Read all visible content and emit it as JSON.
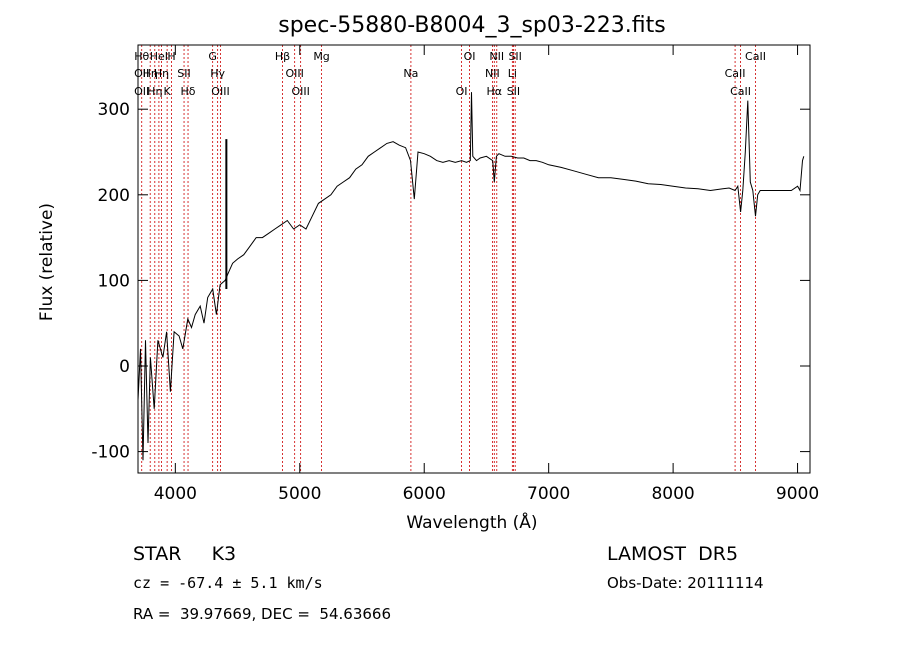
{
  "chart_data": {
    "type": "line",
    "title": "spec-55880-B8004_3_sp03-223.fits",
    "xlabel": "Wavelength (Å)",
    "ylabel": "Flux (relative)",
    "xlim": [
      3700,
      9100
    ],
    "ylim": [
      -125,
      375
    ],
    "xticks": [
      4000,
      5000,
      6000,
      7000,
      8000,
      9000
    ],
    "yticks": [
      -100,
      0,
      100,
      200,
      300
    ],
    "grid": false,
    "line_color": "#000000",
    "marker_color": "#cc0000",
    "series": [
      {
        "x": [
          3700,
          3720,
          3740,
          3760,
          3780,
          3800,
          3830,
          3860,
          3900,
          3930,
          3960,
          3990,
          4030,
          4060,
          4100,
          4130,
          4160,
          4200,
          4230,
          4260,
          4300,
          4330,
          4360,
          4400,
          4430,
          4460,
          4500,
          4550,
          4600,
          4650,
          4700,
          4750,
          4800,
          4850,
          4900,
          4950,
          5000,
          5050,
          5100,
          5150,
          5200,
          5250,
          5300,
          5350,
          5400,
          5450,
          5500,
          5550,
          5600,
          5650,
          5700,
          5750,
          5800,
          5850,
          5890,
          5920,
          5950,
          6000,
          6050,
          6100,
          6150,
          6200,
          6250,
          6300,
          6340,
          6370,
          6380,
          6390,
          6420,
          6450,
          6500,
          6550,
          6563,
          6580,
          6600,
          6650,
          6700,
          6750,
          6800,
          6850,
          6900,
          6950,
          7000,
          7100,
          7200,
          7300,
          7400,
          7500,
          7600,
          7700,
          7800,
          7900,
          8000,
          8100,
          8200,
          8300,
          8400,
          8450,
          8498,
          8520,
          8542,
          8560,
          8580,
          8600,
          8620,
          8640,
          8662,
          8680,
          8700,
          8750,
          8800,
          8850,
          8900,
          8950,
          9000,
          9020,
          9040,
          9050
        ],
        "y": [
          -40,
          20,
          -110,
          30,
          -90,
          10,
          -50,
          30,
          10,
          40,
          -30,
          40,
          35,
          20,
          55,
          45,
          60,
          70,
          50,
          80,
          90,
          60,
          95,
          100,
          110,
          120,
          125,
          130,
          140,
          150,
          150,
          155,
          160,
          165,
          170,
          160,
          165,
          160,
          175,
          190,
          195,
          200,
          210,
          215,
          220,
          230,
          235,
          245,
          250,
          255,
          260,
          262,
          258,
          255,
          240,
          195,
          250,
          248,
          245,
          240,
          238,
          240,
          238,
          240,
          238,
          240,
          320,
          245,
          240,
          243,
          245,
          240,
          215,
          245,
          248,
          245,
          245,
          243,
          243,
          240,
          240,
          238,
          235,
          232,
          228,
          224,
          220,
          220,
          218,
          216,
          213,
          212,
          210,
          208,
          207,
          205,
          207,
          208,
          205,
          210,
          180,
          205,
          250,
          310,
          215,
          205,
          175,
          200,
          205,
          205,
          205,
          205,
          205,
          205,
          210,
          205,
          240,
          245
        ],
        "spikes": [
          {
            "x": 4410,
            "y1": 90,
            "y2": 265
          }
        ]
      }
    ],
    "markers": [
      {
        "x": 3730,
        "labels": [
          "Hθ",
          "OII",
          "OII"
        ]
      },
      {
        "x": 3798,
        "labels": [
          "Hη"
        ]
      },
      {
        "x": 3835,
        "labels": [
          "Hη"
        ]
      },
      {
        "x": 3868,
        "labels": [
          "HeI"
        ]
      },
      {
        "x": 3889,
        "labels": [
          "Hη"
        ]
      },
      {
        "x": 3934,
        "labels": [
          "K"
        ]
      },
      {
        "x": 3969,
        "labels": [
          "H"
        ]
      },
      {
        "x": 4070,
        "labels": [
          "SII"
        ]
      },
      {
        "x": 4102,
        "labels": [
          "Hδ"
        ]
      },
      {
        "x": 4300,
        "labels": [
          "G"
        ]
      },
      {
        "x": 4340,
        "labels": [
          "Hγ"
        ]
      },
      {
        "x": 4363,
        "labels": [
          "OIII"
        ]
      },
      {
        "x": 4861,
        "labels": [
          "Hβ"
        ]
      },
      {
        "x": 4959,
        "labels": [
          "OIII"
        ]
      },
      {
        "x": 5007,
        "labels": [
          "OIII"
        ]
      },
      {
        "x": 5175,
        "labels": [
          "Mg"
        ]
      },
      {
        "x": 5893,
        "labels": [
          "Na"
        ]
      },
      {
        "x": 6300,
        "labels": [
          "OI"
        ]
      },
      {
        "x": 6364,
        "labels": [
          "OI"
        ]
      },
      {
        "x": 6548,
        "labels": [
          "NII"
        ]
      },
      {
        "x": 6563,
        "labels": [
          "Hα"
        ]
      },
      {
        "x": 6583,
        "labels": [
          "NII"
        ]
      },
      {
        "x": 6708,
        "labels": [
          "Li"
        ]
      },
      {
        "x": 6717,
        "labels": [
          "SII"
        ]
      },
      {
        "x": 6731,
        "labels": [
          "SII"
        ]
      },
      {
        "x": 8498,
        "labels": [
          "CaII"
        ]
      },
      {
        "x": 8542,
        "labels": [
          "CaII"
        ]
      },
      {
        "x": 8662,
        "labels": [
          "CaII"
        ]
      }
    ]
  },
  "info": {
    "class_line": "STAR     K3",
    "velocity": "cz = -67.4 ± 5.1 km/s",
    "coords": "RA =  39.97669, DEC =  54.63666",
    "survey": "LAMOST  DR5",
    "obs_date": "Obs-Date: 20111114"
  }
}
